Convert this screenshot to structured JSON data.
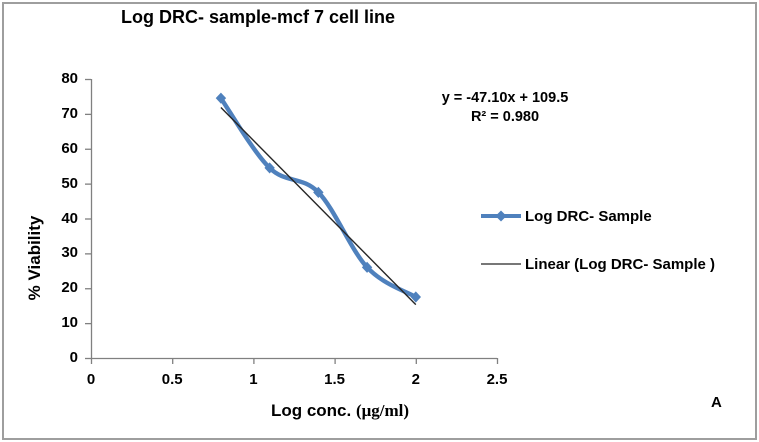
{
  "title": "Log DRC- sample-mcf 7 cell line",
  "panel_label": "A",
  "axes": {
    "y_label": "% Viability",
    "x_label_main": "Log conc.",
    "x_label_unit": "(μg/ml)"
  },
  "annotation": {
    "equation": "y = -47.10x + 109.5",
    "r_squared": "R² = 0.980"
  },
  "legend": [
    {
      "label": "Log DRC- Sample",
      "type": "series"
    },
    {
      "label": "Linear (Log DRC- Sample )",
      "type": "trendline"
    }
  ],
  "colors": {
    "series": "#4F81BD",
    "trendline": "#262626",
    "axis": "#808080",
    "border": "#9E9E9E",
    "text": "#000000"
  },
  "chart_data": {
    "type": "line",
    "title": "Log DRC- sample-mcf 7 cell line",
    "xlabel": "Log conc. (μg/ml)",
    "ylabel": "% Viability",
    "x": [
      0.8,
      1.1,
      1.4,
      1.7,
      2.0
    ],
    "series": [
      {
        "name": "Log DRC- Sample",
        "values": [
          74.5,
          54.5,
          47.5,
          26,
          17.5
        ]
      }
    ],
    "trendline": {
      "type": "linear",
      "label": "Linear (Log DRC- Sample )",
      "slope": -47.1,
      "intercept": 109.5,
      "r_squared": 0.98,
      "equation": "y = -47.10x + 109.5"
    },
    "xlim": [
      0,
      2.5
    ],
    "ylim": [
      0,
      80
    ],
    "x_ticks": [
      0,
      0.5,
      1,
      1.5,
      2,
      2.5
    ],
    "y_ticks": [
      0,
      10,
      20,
      30,
      40,
      50,
      60,
      70,
      80
    ],
    "grid": false,
    "legend_position": "right",
    "marker": "diamond",
    "smoothed_line": true
  }
}
